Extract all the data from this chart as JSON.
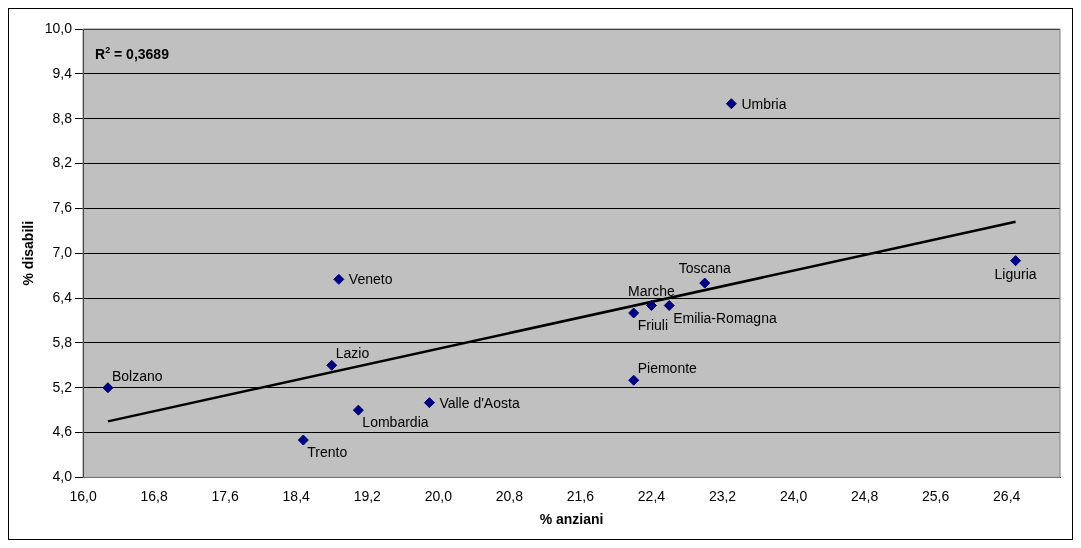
{
  "chart_data": {
    "type": "scatter",
    "xlabel": "% anziani",
    "ylabel": "% disabili",
    "xlim": [
      16,
      27
    ],
    "ylim": [
      4,
      10
    ],
    "xticks": [
      {
        "value": 16,
        "label": "16,0"
      },
      {
        "value": 16.8,
        "label": "16,8"
      },
      {
        "value": 17.6,
        "label": "17,6"
      },
      {
        "value": 18.4,
        "label": "18,4"
      },
      {
        "value": 19.2,
        "label": "19,2"
      },
      {
        "value": 20,
        "label": "20,0"
      },
      {
        "value": 20.8,
        "label": "20,8"
      },
      {
        "value": 21.6,
        "label": "21,6"
      },
      {
        "value": 22.4,
        "label": "22,4"
      },
      {
        "value": 23.2,
        "label": "23,2"
      },
      {
        "value": 24,
        "label": "24,0"
      },
      {
        "value": 24.8,
        "label": "24,8"
      },
      {
        "value": 25.6,
        "label": "25,6"
      },
      {
        "value": 26.4,
        "label": "26,4"
      }
    ],
    "yticks": [
      {
        "value": 4,
        "label": "4,0"
      },
      {
        "value": 4.6,
        "label": "4,6"
      },
      {
        "value": 5.2,
        "label": "5,2"
      },
      {
        "value": 5.8,
        "label": "5,8"
      },
      {
        "value": 6.4,
        "label": "6,4"
      },
      {
        "value": 7,
        "label": "7,0"
      },
      {
        "value": 7.6,
        "label": "7,6"
      },
      {
        "value": 8.2,
        "label": "8,2"
      },
      {
        "value": 8.8,
        "label": "8,8"
      },
      {
        "value": 9.4,
        "label": "9,4"
      },
      {
        "value": 10,
        "label": "10,0"
      }
    ],
    "grid": "y",
    "legend": false,
    "marker": "diamond",
    "series": [
      {
        "type": "scatter",
        "color": "#000080",
        "x": [
          16.28,
          18.48,
          18.8,
          18.88,
          19.1,
          19.9,
          22.2,
          22.2,
          22.4,
          22.6,
          23.0,
          23.3,
          26.5
        ],
        "values": [
          5.2,
          4.5,
          5.5,
          6.65,
          4.9,
          5.0,
          6.2,
          5.3,
          6.3,
          6.3,
          6.6,
          9.0,
          6.9
        ]
      },
      {
        "type": "line",
        "color": "#000000",
        "marker": "none",
        "line_style": "solid",
        "x": [
          16.28,
          26.5
        ],
        "values": [
          4.75,
          7.42
        ]
      }
    ],
    "annotations": [
      "R$^{2}$ = 0,3689",
      {
        "text": "Bolzano",
        "x": 16.28,
        "y": 5.2
      },
      {
        "text": "Trento",
        "x": 18.48,
        "y": 4.5
      },
      {
        "text": "Lazio",
        "x": 18.8,
        "y": 5.5
      },
      {
        "text": "Veneto",
        "x": 18.88,
        "y": 6.65
      },
      {
        "text": "Lombardia",
        "x": 19.1,
        "y": 4.9
      },
      {
        "text": "Valle d'Aosta",
        "x": 19.9,
        "y": 5.0
      },
      {
        "text": "Friuli",
        "x": 22.2,
        "y": 6.2
      },
      {
        "text": "Piemonte",
        "x": 22.2,
        "y": 5.3
      },
      {
        "text": "Marche",
        "x": 22.4,
        "y": 6.3
      },
      {
        "text": "Emilia-Romagna",
        "x": 22.6,
        "y": 6.3
      },
      {
        "text": "Toscana",
        "x": 23.0,
        "y": 6.6
      },
      {
        "text": "Umbria",
        "x": 23.3,
        "y": 9.0
      },
      {
        "text": "Liguria",
        "x": 26.5,
        "y": 6.9
      }
    ]
  }
}
